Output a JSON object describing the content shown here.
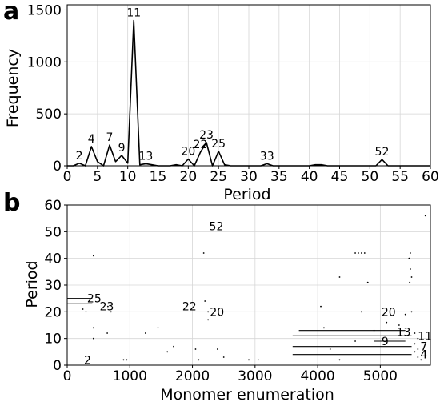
{
  "chart_data": [
    {
      "type": "line",
      "panel_label": "a",
      "xlabel": "Period",
      "ylabel": "Frequency",
      "xlim": [
        0,
        60
      ],
      "ylim": [
        0,
        1550
      ],
      "xticks": [
        0,
        5,
        10,
        15,
        20,
        25,
        30,
        35,
        40,
        45,
        50,
        55,
        60
      ],
      "yticks": [
        0,
        500,
        1000,
        1500
      ],
      "grid": true,
      "series": [
        {
          "x": [
            0,
            1,
            2,
            3,
            4,
            5,
            6,
            7,
            8,
            9,
            10,
            11,
            12,
            13,
            14,
            15,
            16,
            17,
            18,
            19,
            20,
            21,
            22,
            23,
            24,
            25,
            26,
            27,
            28,
            29,
            30,
            31,
            32,
            33,
            34,
            35,
            36,
            37,
            38,
            39,
            40,
            41,
            42,
            43,
            44,
            45,
            46,
            47,
            48,
            49,
            50,
            51,
            52,
            53,
            54,
            55,
            56,
            57,
            58,
            59,
            60
          ],
          "y": [
            0,
            0,
            25,
            0,
            185,
            40,
            0,
            200,
            40,
            100,
            25,
            1400,
            10,
            20,
            10,
            0,
            0,
            0,
            10,
            0,
            65,
            0,
            130,
            225,
            0,
            140,
            10,
            0,
            0,
            0,
            0,
            0,
            0,
            20,
            0,
            0,
            0,
            0,
            0,
            0,
            0,
            10,
            10,
            0,
            0,
            0,
            0,
            0,
            0,
            0,
            0,
            0,
            60,
            0,
            0,
            0,
            0,
            0,
            0,
            0,
            0
          ]
        }
      ],
      "peak_labels": [
        {
          "text": "2",
          "x": 2,
          "y": 25
        },
        {
          "text": "4",
          "x": 4,
          "y": 185
        },
        {
          "text": "7",
          "x": 7,
          "y": 200
        },
        {
          "text": "9",
          "x": 9,
          "y": 100
        },
        {
          "text": "11",
          "x": 11,
          "y": 1400
        },
        {
          "text": "13",
          "x": 13,
          "y": 20
        },
        {
          "text": "20",
          "x": 20,
          "y": 65
        },
        {
          "text": "22",
          "x": 22,
          "y": 130
        },
        {
          "text": "23",
          "x": 23,
          "y": 225
        },
        {
          "text": "25",
          "x": 25,
          "y": 140
        },
        {
          "text": "33",
          "x": 33,
          "y": 20
        },
        {
          "text": "52",
          "x": 52,
          "y": 60
        }
      ]
    },
    {
      "type": "scatter",
      "panel_label": "b",
      "xlabel": "Monomer enumeration",
      "ylabel": "Period",
      "xlim": [
        0,
        5800
      ],
      "ylim": [
        0,
        60
      ],
      "xticks": [
        0,
        1000,
        2000,
        3000,
        4000,
        5000
      ],
      "yticks": [
        0,
        10,
        20,
        30,
        40,
        50,
        60
      ],
      "grid": true,
      "segments": [
        {
          "x1": 3600,
          "x2": 5500,
          "y": 11
        },
        {
          "x1": 3600,
          "x2": 5500,
          "y": 7
        },
        {
          "x1": 3600,
          "x2": 5500,
          "y": 4
        },
        {
          "x1": 0,
          "x2": 3600,
          "y": 0
        },
        {
          "x1": 0,
          "x2": 400,
          "y": 25
        },
        {
          "x1": 0,
          "x2": 400,
          "y": 23
        },
        {
          "x1": 3700,
          "x2": 5400,
          "y": 13
        },
        {
          "x1": 4900,
          "x2": 5400,
          "y": 9
        }
      ],
      "points": [
        {
          "x": 420,
          "y": 41
        },
        {
          "x": 2180,
          "y": 42
        },
        {
          "x": 4600,
          "y": 42
        },
        {
          "x": 4650,
          "y": 42
        },
        {
          "x": 4700,
          "y": 42
        },
        {
          "x": 4750,
          "y": 42
        },
        {
          "x": 5480,
          "y": 42
        },
        {
          "x": 5460,
          "y": 40
        },
        {
          "x": 5720,
          "y": 56
        },
        {
          "x": 4350,
          "y": 33
        },
        {
          "x": 4800,
          "y": 31
        },
        {
          "x": 5480,
          "y": 36
        },
        {
          "x": 5500,
          "y": 33
        },
        {
          "x": 5470,
          "y": 31
        },
        {
          "x": 250,
          "y": 21
        },
        {
          "x": 300,
          "y": 20
        },
        {
          "x": 650,
          "y": 22
        },
        {
          "x": 700,
          "y": 20
        },
        {
          "x": 420,
          "y": 14
        },
        {
          "x": 420,
          "y": 10
        },
        {
          "x": 640,
          "y": 12
        },
        {
          "x": 900,
          "y": 2
        },
        {
          "x": 950,
          "y": 2
        },
        {
          "x": 1250,
          "y": 12
        },
        {
          "x": 1450,
          "y": 14
        },
        {
          "x": 1600,
          "y": 5
        },
        {
          "x": 1700,
          "y": 7
        },
        {
          "x": 2050,
          "y": 6
        },
        {
          "x": 2100,
          "y": 2
        },
        {
          "x": 2200,
          "y": 24
        },
        {
          "x": 2250,
          "y": 20
        },
        {
          "x": 2250,
          "y": 17
        },
        {
          "x": 2400,
          "y": 6
        },
        {
          "x": 2500,
          "y": 3
        },
        {
          "x": 2900,
          "y": 2
        },
        {
          "x": 3050,
          "y": 2
        },
        {
          "x": 4050,
          "y": 22
        },
        {
          "x": 4100,
          "y": 14
        },
        {
          "x": 4200,
          "y": 6
        },
        {
          "x": 4350,
          "y": 2
        },
        {
          "x": 4600,
          "y": 9
        },
        {
          "x": 4700,
          "y": 20
        },
        {
          "x": 4900,
          "y": 13
        },
        {
          "x": 5100,
          "y": 16
        },
        {
          "x": 5300,
          "y": 15
        },
        {
          "x": 5400,
          "y": 19
        },
        {
          "x": 5500,
          "y": 20
        },
        {
          "x": 5550,
          "y": 12
        },
        {
          "x": 5600,
          "y": 10
        },
        {
          "x": 5550,
          "y": 8
        },
        {
          "x": 5600,
          "y": 6
        },
        {
          "x": 5550,
          "y": 5
        },
        {
          "x": 5600,
          "y": 3
        },
        {
          "x": 5650,
          "y": 2
        }
      ],
      "annotations": [
        {
          "text": "52",
          "x": 2230,
          "y": 52
        },
        {
          "text": "25",
          "x": 280,
          "y": 25
        },
        {
          "text": "23",
          "x": 480,
          "y": 22
        },
        {
          "text": "22",
          "x": 1800,
          "y": 22
        },
        {
          "text": "20",
          "x": 2240,
          "y": 20
        },
        {
          "text": "20",
          "x": 4980,
          "y": 20
        },
        {
          "text": "2",
          "x": 230,
          "y": 2
        },
        {
          "text": "13",
          "x": 5220,
          "y": 12.5
        },
        {
          "text": "11",
          "x": 5560,
          "y": 11
        },
        {
          "text": "9",
          "x": 4980,
          "y": 9
        },
        {
          "text": "7",
          "x": 5600,
          "y": 7
        },
        {
          "text": "4",
          "x": 5600,
          "y": 4
        }
      ]
    }
  ]
}
